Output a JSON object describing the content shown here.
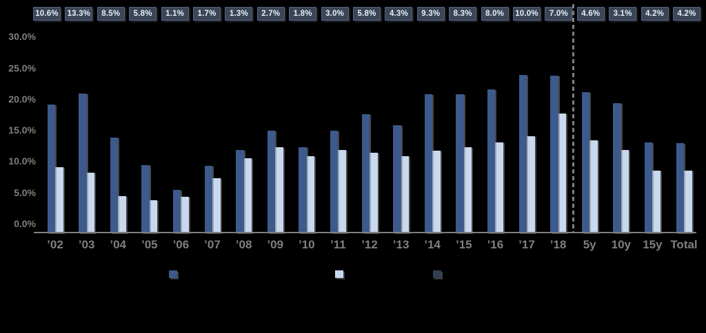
{
  "chart_data": {
    "type": "bar",
    "title": "",
    "categories": [
      "’02",
      "’03",
      "’04",
      "’05",
      "’06",
      "’07",
      "’08",
      "’09",
      "’10",
      "’11",
      "’12",
      "’13",
      "’14",
      "’15",
      "’16",
      "’17",
      "’18",
      "5y",
      "10y",
      "15y",
      "Total"
    ],
    "series": [
      {
        "name": "dark-blue-bars",
        "color": "#3C5A8C",
        "values": [
          20.6,
          22.4,
          15.4,
          10.9,
          7.0,
          10.8,
          13.4,
          16.4,
          13.8,
          16.5,
          19.1,
          17.3,
          22.3,
          22.3,
          23.1,
          25.4,
          25.3,
          22.6,
          20.9,
          14.6,
          14.5
        ]
      },
      {
        "name": "light-blue-bars",
        "color": "#C8D8EE",
        "values": [
          10.6,
          9.7,
          6.0,
          5.3,
          5.9,
          8.8,
          12.0,
          13.8,
          12.4,
          13.4,
          12.9,
          12.4,
          13.3,
          13.8,
          14.6,
          15.6,
          19.2,
          14.9,
          13.4,
          10.0,
          10.0
        ]
      }
    ],
    "annotation_row": {
      "name": "top-value-boxes",
      "box_fill": "#3A4658",
      "box_border": "#56647C",
      "text_color": "#E9EDF4",
      "labels": [
        "10.6%",
        "13.3%",
        "8.5%",
        "5.8%",
        "1.1%",
        "1.7%",
        "1.3%",
        "2.7%",
        "1.8%",
        "3.0%",
        "5.8%",
        "4.3%",
        "9.3%",
        "8.3%",
        "8.0%",
        "10.0%",
        "7.0%",
        "4.6%",
        "3.1%",
        "4.2%",
        "4.2%"
      ]
    },
    "y_axis": {
      "tick_labels": [
        "30.0%",
        "25.0%",
        "20.0%",
        "15.0%",
        "10.0%",
        "5.0%",
        "0.0%"
      ],
      "min": 0,
      "max": 30,
      "unit": "%"
    },
    "separator": {
      "after_category": "’18",
      "style": "dashed-vertical",
      "color": "#808080"
    },
    "legend": {
      "labels_visible": false,
      "swatch_colors": [
        "#3C5A8C",
        "#C8D8EE",
        "#323E52"
      ]
    },
    "grid": false,
    "axis_line_color": "#808080",
    "background": "#000000"
  }
}
